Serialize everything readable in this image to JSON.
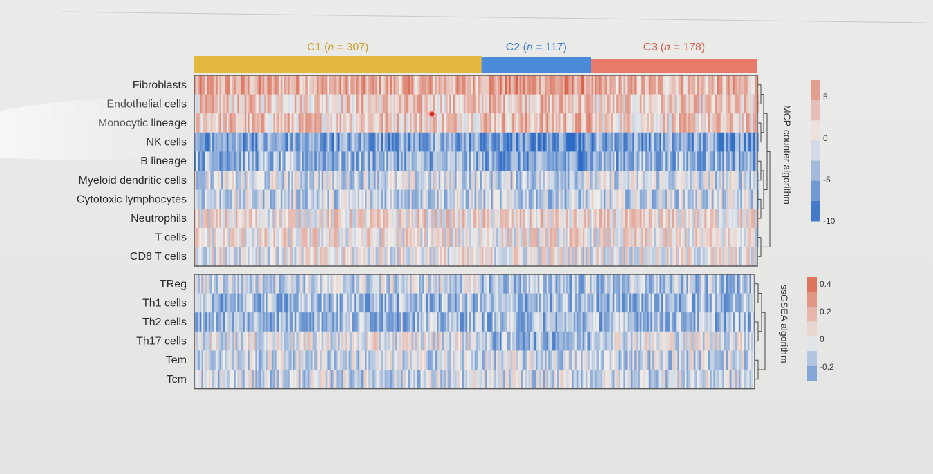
{
  "chart_data": {
    "type": "heatmap",
    "clusters": [
      {
        "label": "C1",
        "n_label": "n",
        "count_text": " = 307)",
        "n": 307,
        "color": "#e2b83e",
        "text_color": "#c9a030"
      },
      {
        "label": "C2",
        "n_label": "n",
        "count_text": " = 117)",
        "n": 117,
        "color": "#4a8ad8",
        "text_color": "#3f7fcc"
      },
      {
        "label": "C3",
        "n_label": "n",
        "count_text": " = 178)",
        "n": 178,
        "color": "#e77a6a",
        "text_color": "#d0604f"
      }
    ],
    "panels": [
      {
        "algorithm": "MCP-counter algorithm",
        "rows": [
          "Fibroblasts",
          "Endothelial cells",
          "Monocytic lineage",
          "NK cells",
          "B lineage",
          "Myeloid dendritic cells",
          "Cytotoxic lymphocytes",
          "Neutrophils",
          "T cells",
          "CD8 T cells"
        ],
        "row_bias": [
          4.5,
          2.5,
          2.8,
          -5.5,
          -4.5,
          -1.5,
          -2.0,
          1.0,
          0.5,
          0.0
        ],
        "legend_ticks": [
          "5",
          "0",
          "-5",
          "-10"
        ],
        "legend_values": [
          5,
          0,
          -5,
          -10
        ],
        "range": [
          -10,
          7
        ]
      },
      {
        "algorithm": "ssGSEA algorithm",
        "rows": [
          "TReg",
          "Th1 cells",
          "Th2 cells",
          "Th17 cells",
          "Tem",
          "Tcm"
        ],
        "row_bias": [
          -0.15,
          -0.18,
          -0.17,
          -0.02,
          -0.08,
          -0.08
        ],
        "legend_ticks": [
          "0.4",
          "0.2",
          "0",
          "-0.2"
        ],
        "legend_values": [
          0.4,
          0.2,
          0,
          -0.2
        ],
        "range": [
          -0.3,
          0.45
        ]
      }
    ],
    "colors": {
      "high": "#d9634b",
      "mid": "#eeeeec",
      "low": "#2d6bc4"
    }
  }
}
